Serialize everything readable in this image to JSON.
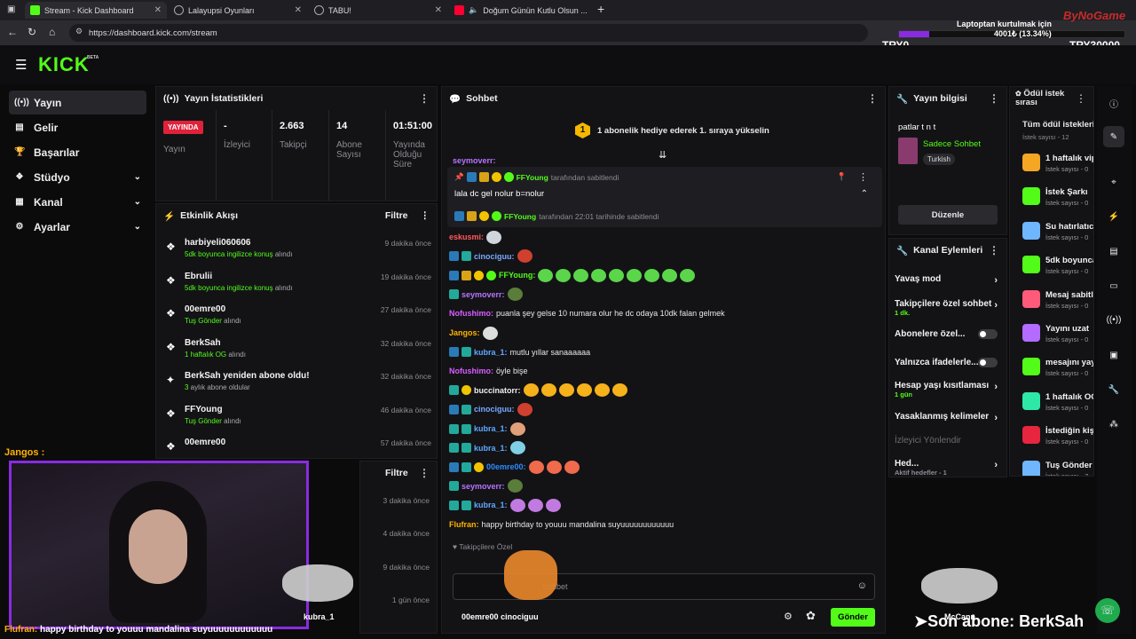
{
  "browser": {
    "tabs": [
      {
        "title": "Stream - Kick Dashboard",
        "active": true
      },
      {
        "title": "Lalayupsi Oyunları",
        "active": false
      },
      {
        "title": "TABU!",
        "active": false
      },
      {
        "title": "Doğum Günün Kutlu Olsun ...",
        "active": false
      }
    ],
    "new_tab": "+",
    "url": "https://dashboard.kick.com/stream"
  },
  "overlay": {
    "laptop_text": "Laptoptan kurtulmak için",
    "progress_text": "4001₺ (13.34%)",
    "progress_fraction": 0.1334,
    "goal_left": "TRY0",
    "goal_right": "TRY30000",
    "watermark": "ByNoGame",
    "chat_line_user": "Jangos :",
    "bottom_line_user": "Flufran:",
    "bottom_line_text": "happy birthday to youuu mandalina suyuuuuuuuuuuuu",
    "pet_names": [
      "kubra_1",
      "cinociguu",
      "00emre00",
      "McCann"
    ],
    "last_sub": "➤Son abone: BerkSah"
  },
  "header": {
    "logo": "KICK",
    "beta": "BETA"
  },
  "sidebar": {
    "items": [
      {
        "label": "Yayın",
        "icon": "broadcast-icon",
        "active": true,
        "chevron": false
      },
      {
        "label": "Gelir",
        "icon": "revenue-icon",
        "active": false,
        "chevron": false
      },
      {
        "label": "Başarılar",
        "icon": "trophy-icon",
        "active": false,
        "chevron": false
      },
      {
        "label": "Stüdyo",
        "icon": "studio-icon",
        "active": false,
        "chevron": true
      },
      {
        "label": "Kanal",
        "icon": "channel-icon",
        "active": false,
        "chevron": true
      },
      {
        "label": "Ayarlar",
        "icon": "gear-icon",
        "active": false,
        "chevron": true
      }
    ]
  },
  "stats": {
    "title": "Yayın İstatistikleri",
    "live_badge": "YAYINDA",
    "live_label": "Yayın",
    "items": [
      {
        "value": "-",
        "label": "İzleyici"
      },
      {
        "value": "2.663",
        "label": "Takipçi"
      },
      {
        "value": "14",
        "label": "Abone Sayısı"
      },
      {
        "value": "01:51:00",
        "label": "Yayında Olduğu Süre"
      }
    ]
  },
  "activity": {
    "title": "Etkinlik Akışı",
    "filter": "Filtre",
    "items": [
      {
        "name": "harbiyeli060606",
        "detail_hl": "5dk boyunca ingilizce konuş",
        "detail": " alındı",
        "time": "9 dakika önce",
        "icon": "gift"
      },
      {
        "name": "Ebrulii",
        "detail_hl": "5dk boyunca ingilizce konuş",
        "detail": " alındı",
        "time": "19 dakika önce",
        "icon": "gift"
      },
      {
        "name": "00emre00",
        "detail_hl": "Tuş Gönder",
        "detail": " alındı",
        "time": "27 dakika önce",
        "icon": "gift"
      },
      {
        "name": "BerkSah",
        "detail_hl": "1 haftalık OG",
        "detail": " alındı",
        "time": "32 dakika önce",
        "icon": "gift"
      },
      {
        "name": "BerkSah yeniden abone oldu!",
        "detail_hl": "3",
        "detail": " aylık abone oldular",
        "time": "32 dakika önce",
        "icon": "star"
      },
      {
        "name": "FFYoung",
        "detail_hl": "Tuş Gönder",
        "detail": " alındı",
        "time": "46 dakika önce",
        "icon": "gift"
      },
      {
        "name": "00emre00",
        "detail_hl": "",
        "detail": "",
        "time": "57 dakika önce",
        "icon": "gift"
      }
    ]
  },
  "second_panel": {
    "filter": "Filtre",
    "times": [
      "3 dakika önce",
      "4 dakika önce",
      "9 dakika önce",
      "1 gün önce"
    ]
  },
  "chat": {
    "title": "Sohbet",
    "banner": "1 abonelik hediye ederek 1. sıraya yükselin",
    "banner_count": "1",
    "partial_user": "seymoverr:",
    "pinned_by_user": "FFYoung",
    "pinned_by_text": "tarafından sabitlendi",
    "pinned_message": "lala dc gel nolur b=nolur",
    "pinned_footer_user": "FFYoung",
    "pinned_footer_text": "tarafından 22:01 tarihinde sabitlendi",
    "messages": [
      {
        "user": "eskusmi:",
        "text": "",
        "color": "#ff5a5a",
        "badges": [],
        "emotes": [
          "#cfd5db"
        ]
      },
      {
        "user": "cinociguu:",
        "text": "",
        "color": "#7aa8ff",
        "badges": [
          "mod",
          "sub"
        ],
        "emotes": [
          "#d0402f"
        ]
      },
      {
        "user": "FFYoung:",
        "text": "",
        "color": "#53fc18",
        "badges": [
          "mod",
          "crown",
          "og",
          "ver"
        ],
        "emotes": [
          "#5bd64a",
          "#5bd64a",
          "#5bd64a",
          "#5bd64a",
          "#5bd64a",
          "#5bd64a",
          "#5bd64a",
          "#5bd64a",
          "#5bd64a"
        ]
      },
      {
        "user": "seymoverr:",
        "text": "",
        "color": "#b774ff",
        "badges": [
          "sub"
        ],
        "emotes": [
          "#5b7d3a"
        ]
      },
      {
        "user": "Nofushimo:",
        "text": "puanla şey gelse 10 numara olur he dc odaya 10dk falan gelmek",
        "color": "#d75eff",
        "badges": [],
        "emotes": []
      },
      {
        "user": "Jangos:",
        "text": "",
        "color": "#ffb200",
        "badges": [],
        "emotes": [
          "#dddddd"
        ]
      },
      {
        "user": "kubra_1:",
        "text": "mutlu yıllar sanaaaaaa",
        "color": "#5fa8ff",
        "badges": [
          "mod",
          "sub"
        ],
        "emotes": []
      },
      {
        "user": "Nofushimo:",
        "text": "öyle bişe",
        "color": "#d75eff",
        "badges": [],
        "emotes": []
      },
      {
        "user": "buccinatorr:",
        "text": "",
        "color": "#f0f0f0",
        "badges": [
          "sub",
          "og"
        ],
        "emotes": [
          "#f6b21b",
          "#f6b21b",
          "#f6b21b",
          "#f6b21b",
          "#f6b21b",
          "#f6b21b"
        ]
      },
      {
        "user": "cinociguu:",
        "text": "",
        "color": "#7aa8ff",
        "badges": [
          "mod",
          "sub"
        ],
        "emotes": [
          "#d0402f"
        ]
      },
      {
        "user": "kubra_1:",
        "text": "",
        "color": "#5fa8ff",
        "badges": [
          "sub",
          "sub"
        ],
        "emotes": [
          "#e0a07a"
        ]
      },
      {
        "user": "kubra_1:",
        "text": "",
        "color": "#5fa8ff",
        "badges": [
          "sub",
          "sub"
        ],
        "emotes": [
          "#7fd0e6"
        ]
      },
      {
        "user": "00emre00:",
        "text": "",
        "color": "#2d8cff",
        "badges": [
          "mod",
          "sub",
          "og"
        ],
        "emotes": [
          "#f06a4c",
          "#f06a4c",
          "#f06a4c"
        ]
      },
      {
        "user": "seymoverr:",
        "text": "",
        "color": "#b774ff",
        "badges": [
          "sub"
        ],
        "emotes": [
          "#5b7d3a"
        ]
      },
      {
        "user": "kubra_1:",
        "text": "",
        "color": "#5fa8ff",
        "badges": [
          "sub",
          "sub"
        ],
        "emotes": [
          "#c07ae0",
          "#c07ae0",
          "#c07ae0"
        ]
      },
      {
        "user": "Flufran:",
        "text": "happy birthday to youuu mandalina suyuuuuuuuuuuuu",
        "color": "#ffb200",
        "badges": [],
        "emotes": []
      }
    ],
    "follower_label": "Takipçilere Özel",
    "input_placeholder": "Sohbet",
    "send": "Gönder"
  },
  "stream_info": {
    "title": "Yayın bilgisi",
    "stream_title": "patlar t n t",
    "category": "Sadece Sohbet",
    "language": "Turkish",
    "edit": "Düzenle"
  },
  "channel_actions": {
    "title": "Kanal Eylemleri",
    "items": [
      {
        "label": "Yavaş mod",
        "sub": "",
        "control": "arrow"
      },
      {
        "label": "Takipçilere özel sohbet",
        "sub": "1 dk.",
        "control": "arrow"
      },
      {
        "label": "Abonelere özel...",
        "sub": "",
        "control": "toggle"
      },
      {
        "label": "Yalnızca ifadelerle...",
        "sub": "",
        "control": "toggle"
      },
      {
        "label": "Hesap yaşı kısıtlaması",
        "sub": "1 gün",
        "control": "arrow"
      },
      {
        "label": "Yasaklanmış kelimeler",
        "sub": "",
        "control": "arrow"
      },
      {
        "label": "İzleyici Yönlendir",
        "sub": "",
        "control": "none"
      },
      {
        "label": "Hed...",
        "sub": "Aktif hedefler - 1",
        "control": "arrow"
      }
    ]
  },
  "rewards": {
    "title": "Ödül istek sırası",
    "all": "Tüm ödül istekleri",
    "count": "İstek sayısı - 12",
    "items": [
      {
        "name": "1 haftalık vip",
        "sub": "İstek sayısı - 0",
        "color": "#f5a623"
      },
      {
        "name": "İstek Şarkı",
        "sub": "İstek sayısı - 0",
        "color": "#53fc18"
      },
      {
        "name": "Su hatırlatıcı",
        "sub": "İstek sayısı - 0",
        "color": "#6fb6ff"
      },
      {
        "name": "5dk boyunca",
        "sub": "İstek sayısı - 0",
        "color": "#53fc18"
      },
      {
        "name": "Mesaj sabitle",
        "sub": "İstek sayısı - 0",
        "color": "#ff5a7a"
      },
      {
        "name": "Yayını uzat",
        "sub": "İstek sayısı - 0",
        "color": "#b46bff"
      },
      {
        "name": "mesajını yay",
        "sub": "İstek sayısı - 0",
        "color": "#53fc18"
      },
      {
        "name": "1 haftalık OG",
        "sub": "İstek sayısı - 0",
        "color": "#2ee8a8"
      },
      {
        "name": "İstediğin kişi",
        "sub": "İstek sayısı - 0",
        "color": "#e8253f"
      },
      {
        "name": "Tuş Gönder",
        "sub": "İstek sayısı - 7",
        "color": "#6fb6ff"
      }
    ]
  }
}
